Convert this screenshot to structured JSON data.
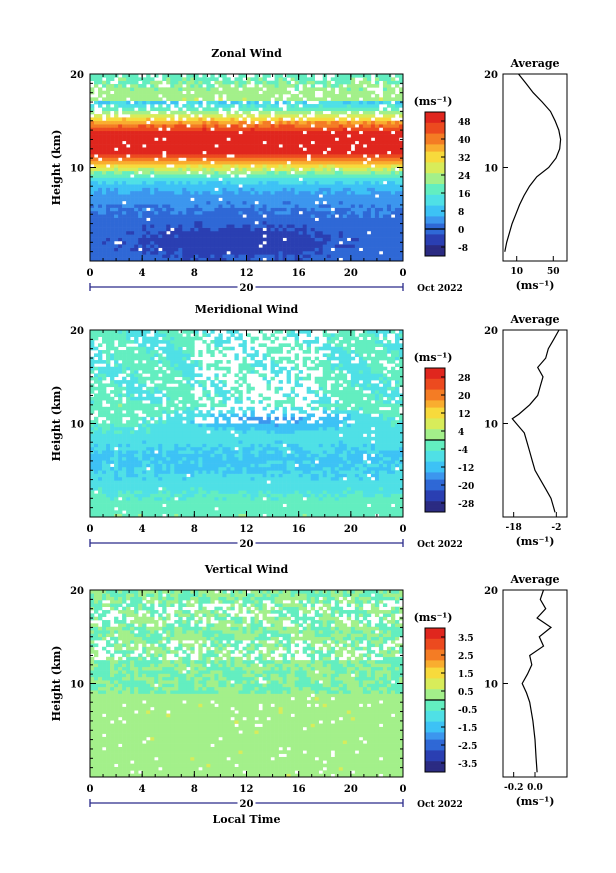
{
  "chart_data": [
    {
      "type": "heatmap",
      "title": "Zonal Wind",
      "ylabel": "Height (km)",
      "xlabel": "",
      "x_ticks": [
        "0",
        "4",
        "8",
        "12",
        "16",
        "20",
        "0"
      ],
      "y_ticks": [
        "10",
        "20"
      ],
      "xlim": [
        0,
        24
      ],
      "ylim": [
        0,
        20
      ],
      "date_marker": "20",
      "date_label": "Oct 2022",
      "colorbar": {
        "unit": "(ms⁻¹)",
        "ticks": [
          "48",
          "40",
          "32",
          "24",
          "16",
          "8",
          "0",
          "-8"
        ],
        "min": -12,
        "max": 52
      },
      "average": {
        "title": "Average",
        "xlabel": "(ms⁻¹)",
        "x_ticks": [
          "10",
          "50"
        ],
        "y_ticks": [
          "10",
          "20"
        ],
        "xlim": [
          -5,
          65
        ],
        "profile": [
          [
            1,
            -3
          ],
          [
            2,
            -1
          ],
          [
            3,
            2
          ],
          [
            4,
            5
          ],
          [
            5,
            9
          ],
          [
            6,
            13
          ],
          [
            7,
            18
          ],
          [
            8,
            24
          ],
          [
            9,
            32
          ],
          [
            10,
            45
          ],
          [
            11,
            53
          ],
          [
            12,
            57
          ],
          [
            13,
            58
          ],
          [
            14,
            56
          ],
          [
            15,
            52
          ],
          [
            16,
            47
          ],
          [
            17,
            38
          ],
          [
            18,
            28
          ],
          [
            19,
            20
          ],
          [
            20,
            12
          ]
        ]
      }
    },
    {
      "type": "heatmap",
      "title": "Meridional Wind",
      "ylabel": "Height (km)",
      "xlabel": "",
      "x_ticks": [
        "0",
        "4",
        "8",
        "12",
        "16",
        "20",
        "0"
      ],
      "y_ticks": [
        "10",
        "20"
      ],
      "xlim": [
        0,
        24
      ],
      "ylim": [
        0,
        20
      ],
      "date_marker": "20",
      "date_label": "Oct 2022",
      "colorbar": {
        "unit": "(ms⁻¹)",
        "ticks": [
          "28",
          "20",
          "12",
          "4",
          "-4",
          "-12",
          "-20",
          "-28"
        ],
        "min": -32,
        "max": 32
      },
      "average": {
        "title": "Average",
        "xlabel": "(ms⁻¹)",
        "x_ticks": [
          "-18",
          "-2"
        ],
        "y_ticks": [
          "10",
          "20"
        ],
        "xlim": [
          -22,
          2
        ],
        "profile": [
          [
            0.5,
            -2.5
          ],
          [
            1,
            -3
          ],
          [
            2,
            -4
          ],
          [
            3,
            -6
          ],
          [
            4,
            -8
          ],
          [
            5,
            -10
          ],
          [
            6,
            -11
          ],
          [
            7,
            -12
          ],
          [
            8,
            -13
          ],
          [
            9,
            -14
          ],
          [
            10,
            -17
          ],
          [
            10.5,
            -18.5
          ],
          [
            11,
            -16
          ],
          [
            12,
            -12
          ],
          [
            13,
            -9
          ],
          [
            14,
            -8
          ],
          [
            15,
            -7
          ],
          [
            16,
            -9
          ],
          [
            17,
            -6
          ],
          [
            18,
            -5
          ],
          [
            19,
            -3
          ],
          [
            20,
            -1
          ]
        ]
      }
    },
    {
      "type": "heatmap",
      "title": "Vertical Wind",
      "ylabel": "Height (km)",
      "xlabel": "Local Time",
      "x_ticks": [
        "0",
        "4",
        "8",
        "12",
        "16",
        "20",
        "0"
      ],
      "y_ticks": [
        "10",
        "20"
      ],
      "xlim": [
        0,
        24
      ],
      "ylim": [
        0,
        20
      ],
      "date_marker": "20",
      "date_label": "Oct 2022",
      "colorbar": {
        "unit": "(ms⁻¹)",
        "ticks": [
          "3.5",
          "2.5",
          "1.5",
          "0.5",
          "-0.5",
          "-1.5",
          "-2.5",
          "-3.5"
        ],
        "min": -4,
        "max": 4
      },
      "average": {
        "title": "Average",
        "xlabel": "(ms⁻¹)",
        "x_ticks": [
          "-0.2",
          "0.0"
        ],
        "y_ticks": [
          "10",
          "20"
        ],
        "xlim": [
          -0.3,
          0.3
        ],
        "profile": [
          [
            0.5,
            0.02
          ],
          [
            2,
            0.01
          ],
          [
            4,
            0.0
          ],
          [
            6,
            -0.02
          ],
          [
            8,
            -0.05
          ],
          [
            9,
            -0.08
          ],
          [
            10,
            -0.12
          ],
          [
            11,
            -0.07
          ],
          [
            12,
            -0.03
          ],
          [
            13,
            -0.05
          ],
          [
            14,
            0.08
          ],
          [
            15,
            0.04
          ],
          [
            16,
            0.15
          ],
          [
            17,
            0.02
          ],
          [
            18,
            0.1
          ],
          [
            19,
            0.05
          ],
          [
            20,
            0.08
          ]
        ]
      }
    }
  ]
}
